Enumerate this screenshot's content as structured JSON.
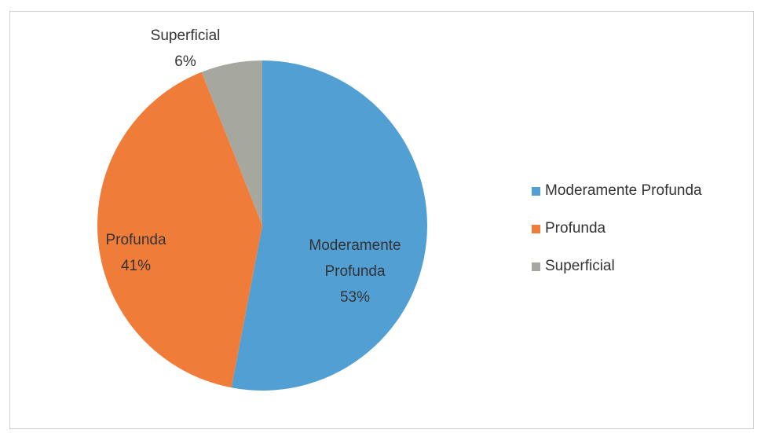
{
  "chart_data": {
    "type": "pie",
    "categories": [
      "Moderamente Profunda",
      "Profunda",
      "Superficial"
    ],
    "values": [
      53,
      41,
      6
    ],
    "value_labels": [
      "53%",
      "41%",
      "6%"
    ],
    "colors": [
      "#529fd4",
      "#f07c3a",
      "#a6a89f"
    ],
    "legend": "right"
  }
}
